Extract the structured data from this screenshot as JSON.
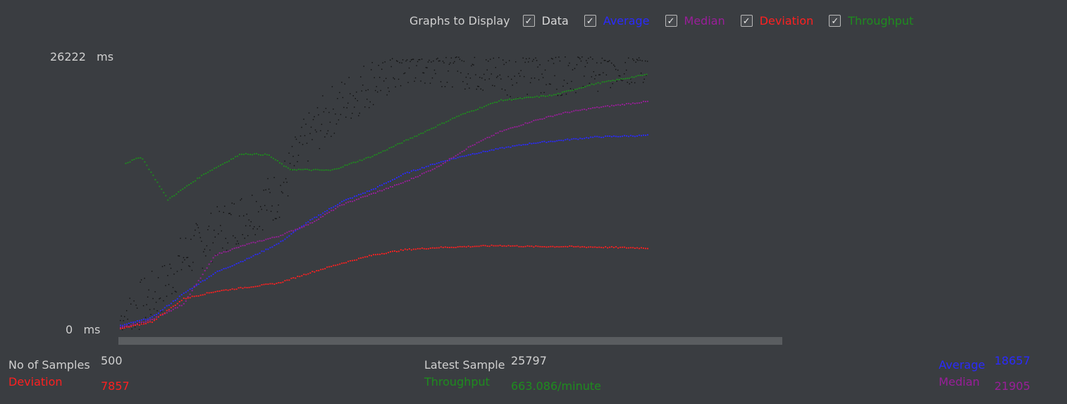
{
  "legend": {
    "title": "Graphs to Display",
    "items": [
      {
        "label": "Data",
        "checked": true,
        "color": "#d8d8d8"
      },
      {
        "label": "Average",
        "checked": true,
        "color": "#2a2aff"
      },
      {
        "label": "Median",
        "checked": true,
        "color": "#9a1e9a"
      },
      {
        "label": "Deviation",
        "checked": true,
        "color": "#ff2020"
      },
      {
        "label": "Throughput",
        "checked": true,
        "color": "#1e8c1e"
      }
    ],
    "check_glyph": "✓"
  },
  "axis": {
    "y_max_value": "26222",
    "y_max_unit": "ms",
    "y_min_value": "0",
    "y_min_unit": "ms"
  },
  "stats": {
    "samples_label": "No of Samples",
    "samples_value": "500",
    "deviation_label": "Deviation",
    "deviation_value": "7857",
    "latest_label": "Latest Sample",
    "latest_value": "25797",
    "throughput_label": "Throughput",
    "throughput_value": "663.086/minute",
    "average_label": "Average",
    "average_value": "18657",
    "median_label": "Median",
    "median_value": "21905"
  },
  "chart_data": {
    "type": "scatter",
    "ylim": [
      0,
      26222
    ],
    "x_samples": [
      0,
      500
    ],
    "series": [
      {
        "name": "Average",
        "color": "#2a2aff",
        "points": [
          [
            0,
            400
          ],
          [
            30,
            1200
          ],
          [
            60,
            3500
          ],
          [
            90,
            5500
          ],
          [
            120,
            6800
          ],
          [
            150,
            8300
          ],
          [
            180,
            10500
          ],
          [
            210,
            12300
          ],
          [
            240,
            13500
          ],
          [
            270,
            15000
          ],
          [
            300,
            16000
          ],
          [
            330,
            16800
          ],
          [
            360,
            17400
          ],
          [
            390,
            17900
          ],
          [
            420,
            18200
          ],
          [
            450,
            18500
          ],
          [
            500,
            18657
          ]
        ]
      },
      {
        "name": "Median",
        "color": "#9a1e9a",
        "points": [
          [
            0,
            200
          ],
          [
            30,
            1000
          ],
          [
            60,
            2500
          ],
          [
            90,
            7200
          ],
          [
            120,
            8200
          ],
          [
            150,
            9000
          ],
          [
            180,
            10200
          ],
          [
            210,
            12000
          ],
          [
            240,
            13100
          ],
          [
            270,
            14200
          ],
          [
            300,
            15600
          ],
          [
            330,
            17500
          ],
          [
            360,
            19000
          ],
          [
            390,
            20000
          ],
          [
            420,
            20800
          ],
          [
            450,
            21300
          ],
          [
            500,
            21905
          ]
        ]
      },
      {
        "name": "Deviation",
        "color": "#ff2020",
        "points": [
          [
            0,
            100
          ],
          [
            30,
            800
          ],
          [
            60,
            3000
          ],
          [
            90,
            3700
          ],
          [
            120,
            4100
          ],
          [
            150,
            4500
          ],
          [
            180,
            5500
          ],
          [
            210,
            6400
          ],
          [
            240,
            7200
          ],
          [
            270,
            7700
          ],
          [
            300,
            7900
          ],
          [
            330,
            8000
          ],
          [
            360,
            8100
          ],
          [
            390,
            8000
          ],
          [
            420,
            8000
          ],
          [
            450,
            7950
          ],
          [
            500,
            7857
          ]
        ]
      },
      {
        "name": "Throughput",
        "color": "#1e8c1e",
        "points": [
          [
            5,
            16000
          ],
          [
            20,
            16600
          ],
          [
            45,
            12500
          ],
          [
            80,
            15000
          ],
          [
            115,
            16900
          ],
          [
            140,
            16800
          ],
          [
            160,
            15400
          ],
          [
            200,
            15300
          ],
          [
            240,
            16700
          ],
          [
            280,
            18600
          ],
          [
            320,
            20500
          ],
          [
            360,
            22000
          ],
          [
            410,
            22500
          ],
          [
            450,
            23600
          ],
          [
            500,
            24500
          ]
        ]
      }
    ],
    "data_scatter": {
      "name": "Data",
      "color": "#111111",
      "trend": [
        [
          0,
          1000
        ],
        [
          40,
          4000
        ],
        [
          60,
          7000
        ],
        [
          100,
          10000
        ],
        [
          150,
          13000
        ],
        [
          175,
          18000
        ],
        [
          200,
          21000
        ],
        [
          240,
          24000
        ],
        [
          280,
          26000
        ],
        [
          320,
          25800
        ],
        [
          360,
          24500
        ],
        [
          420,
          25000
        ],
        [
          500,
          26000
        ]
      ],
      "spread": 2500
    }
  }
}
